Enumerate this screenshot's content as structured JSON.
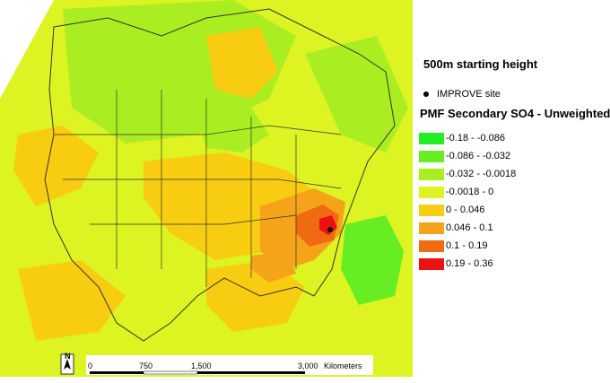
{
  "map": {
    "title": "500m starting height",
    "site_label": "IMPROVE site",
    "legend_title": "PMF Secondary SO4 - Unweighted",
    "legend": [
      {
        "label": "-0.18 - -0.086",
        "color": "#22ee22"
      },
      {
        "label": "-0.086 - -0.032",
        "color": "#66ee22"
      },
      {
        "label": "-0.032 - -0.0018",
        "color": "#aaee22"
      },
      {
        "label": "-0.0018 - 0",
        "color": "#ddf322"
      },
      {
        "label": "0 - 0.046",
        "color": "#f8cc11"
      },
      {
        "label": "0.046 - 0.1",
        "color": "#f5a318"
      },
      {
        "label": "0.1 - 0.19",
        "color": "#f06a12"
      },
      {
        "label": "0.19 - 0.36",
        "color": "#ee1111"
      }
    ],
    "north_label": "N",
    "scale": {
      "ticks": [
        "0",
        "750",
        "1,500",
        "3,000"
      ],
      "units": "Kilometers"
    }
  }
}
